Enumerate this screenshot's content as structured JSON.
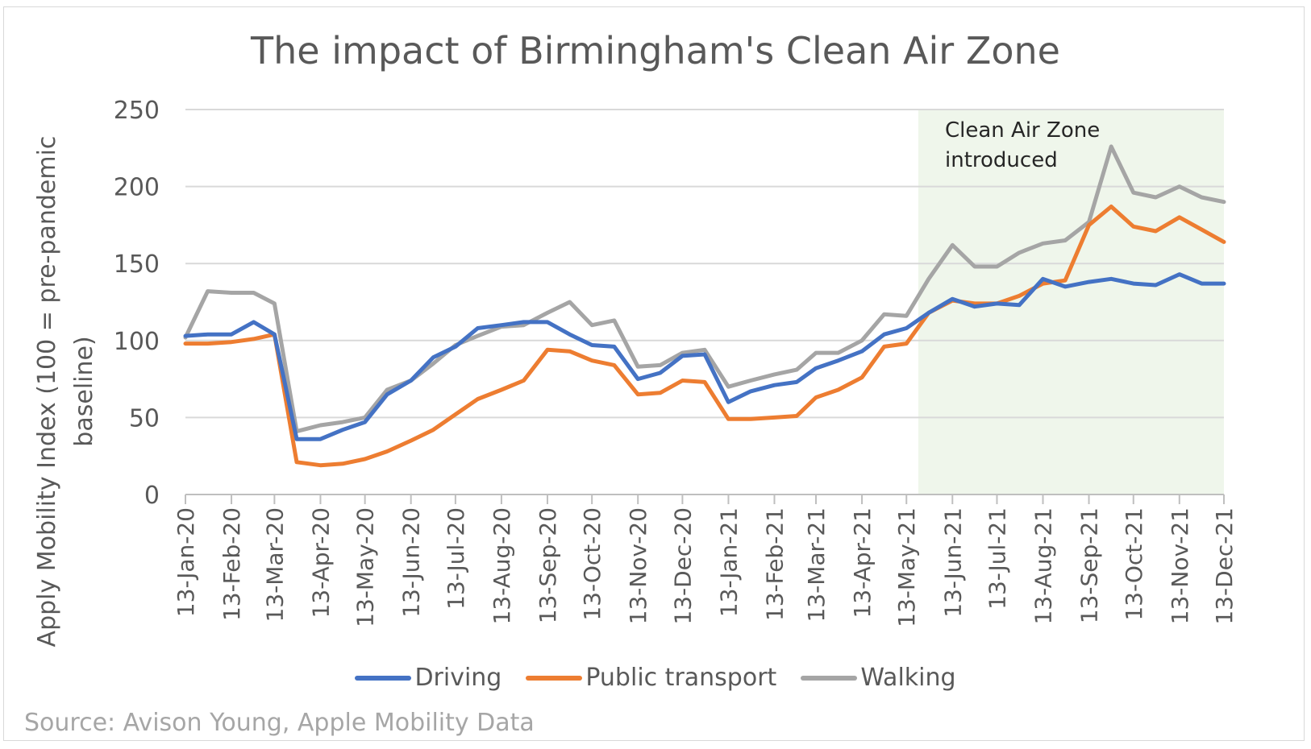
{
  "chart_data": {
    "type": "line",
    "title": "The impact of Birmingham's Clean Air Zone",
    "ylabel": "Apply Mobility Index (100 = pre-pandemic baseline)",
    "xlabel": "",
    "ylim": [
      0,
      250
    ],
    "yticks": [
      0,
      50,
      100,
      150,
      200,
      250
    ],
    "grid": true,
    "legend_position": "bottom",
    "x_tick_labels": [
      "13-Jan-20",
      "13-Feb-20",
      "13-Mar-20",
      "13-Apr-20",
      "13-May-20",
      "13-Jun-20",
      "13-Jul-20",
      "13-Aug-20",
      "13-Sep-20",
      "13-Oct-20",
      "13-Nov-20",
      "13-Dec-20",
      "13-Jan-21",
      "13-Feb-21",
      "13-Mar-21",
      "13-Apr-21",
      "13-May-21",
      "13-Jun-21",
      "13-Jul-21",
      "13-Aug-21",
      "13-Sep-21",
      "13-Oct-21",
      "13-Nov-21",
      "13-Dec-21"
    ],
    "x": [
      "13-Jan-20",
      "28-Jan-20",
      "13-Feb-20",
      "28-Feb-20",
      "13-Mar-20",
      "28-Mar-20",
      "13-Apr-20",
      "28-Apr-20",
      "13-May-20",
      "28-May-20",
      "13-Jun-20",
      "28-Jun-20",
      "13-Jul-20",
      "28-Jul-20",
      "13-Aug-20",
      "28-Aug-20",
      "13-Sep-20",
      "28-Sep-20",
      "13-Oct-20",
      "28-Oct-20",
      "13-Nov-20",
      "28-Nov-20",
      "13-Dec-20",
      "28-Dec-20",
      "13-Jan-21",
      "28-Jan-21",
      "13-Feb-21",
      "28-Feb-21",
      "13-Mar-21",
      "28-Mar-21",
      "13-Apr-21",
      "28-Apr-21",
      "13-May-21",
      "28-May-21",
      "13-Jun-21",
      "28-Jun-21",
      "13-Jul-21",
      "28-Jul-21",
      "13-Aug-21",
      "28-Aug-21",
      "13-Sep-21",
      "28-Sep-21",
      "13-Oct-21",
      "28-Oct-21",
      "13-Nov-21",
      "28-Nov-21",
      "13-Dec-21"
    ],
    "series": [
      {
        "name": "Driving",
        "color": "#4472C4",
        "values": [
          103,
          104,
          104,
          112,
          104,
          36,
          36,
          42,
          47,
          65,
          74,
          89,
          96,
          108,
          110,
          112,
          112,
          104,
          97,
          96,
          75,
          79,
          90,
          91,
          60,
          67,
          71,
          73,
          82,
          87,
          93,
          104,
          108,
          118,
          127,
          122,
          124,
          123,
          140,
          135,
          138,
          140,
          137,
          136,
          143,
          137,
          137
        ]
      },
      {
        "name": "Public transport",
        "color": "#ED7D31",
        "values": [
          98,
          98,
          99,
          101,
          104,
          21,
          19,
          20,
          23,
          28,
          35,
          42,
          52,
          62,
          68,
          74,
          94,
          93,
          87,
          84,
          65,
          66,
          74,
          73,
          49,
          49,
          50,
          51,
          63,
          68,
          76,
          96,
          98,
          118,
          126,
          124,
          124,
          129,
          137,
          139,
          175,
          187,
          174,
          171,
          180,
          172,
          164
        ]
      },
      {
        "name": "Walking",
        "color": "#A5A5A5",
        "values": [
          102,
          132,
          131,
          131,
          124,
          41,
          45,
          47,
          50,
          68,
          74,
          85,
          97,
          103,
          109,
          110,
          118,
          125,
          110,
          113,
          83,
          84,
          92,
          94,
          70,
          74,
          78,
          81,
          92,
          92,
          100,
          117,
          116,
          140,
          162,
          148,
          148,
          157,
          163,
          165,
          177,
          226,
          196,
          193,
          200,
          193,
          190
        ]
      }
    ],
    "shaded_region": {
      "start": "21-May-21",
      "end": "13-Dec-21",
      "color": "#e2efda"
    },
    "annotations": [
      "Clean Air Zone",
      "introduced"
    ]
  },
  "source": "Source: Avison Young, Apple Mobility Data"
}
